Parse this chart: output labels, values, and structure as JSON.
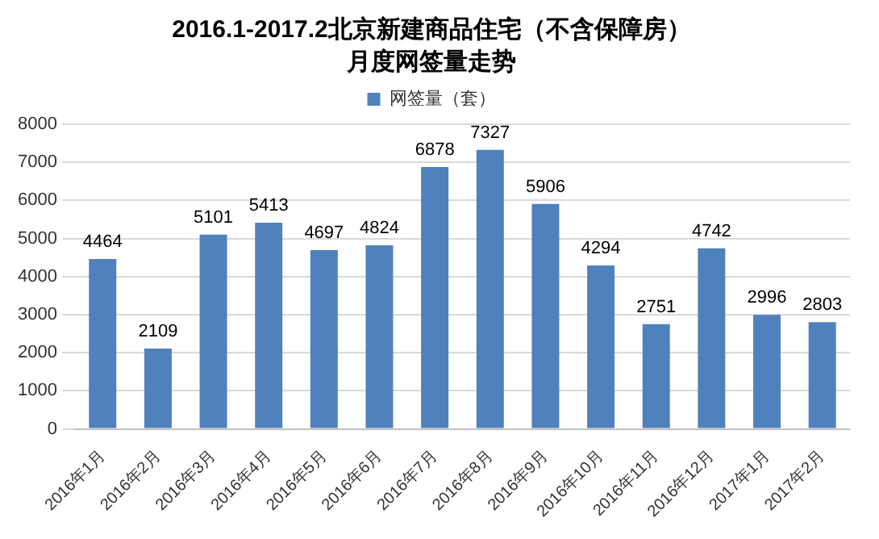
{
  "chart_data": {
    "type": "bar",
    "title": "2016.1-2017.2北京新建商品住宅（不含保障房）",
    "subtitle": "月度网签量走势",
    "categories": [
      "2016年1月",
      "2016年2月",
      "2016年3月",
      "2016年4月",
      "2016年5月",
      "2016年6月",
      "2016年7月",
      "2016年8月",
      "2016年9月",
      "2016年10月",
      "2016年11月",
      "2016年12月",
      "2017年1月",
      "2017年2月"
    ],
    "series": [
      {
        "name": "网签量（套）",
        "color": "#4f81bd",
        "values": [
          4464,
          2109,
          5101,
          5413,
          4697,
          4824,
          6878,
          7327,
          5906,
          4294,
          2751,
          4742,
          2996,
          2803
        ]
      }
    ],
    "ylim": [
      0,
      8000
    ],
    "yticks": [
      0,
      1000,
      2000,
      3000,
      4000,
      5000,
      6000,
      7000,
      8000
    ],
    "grid": "y",
    "legend": "top",
    "data_labels": true
  }
}
